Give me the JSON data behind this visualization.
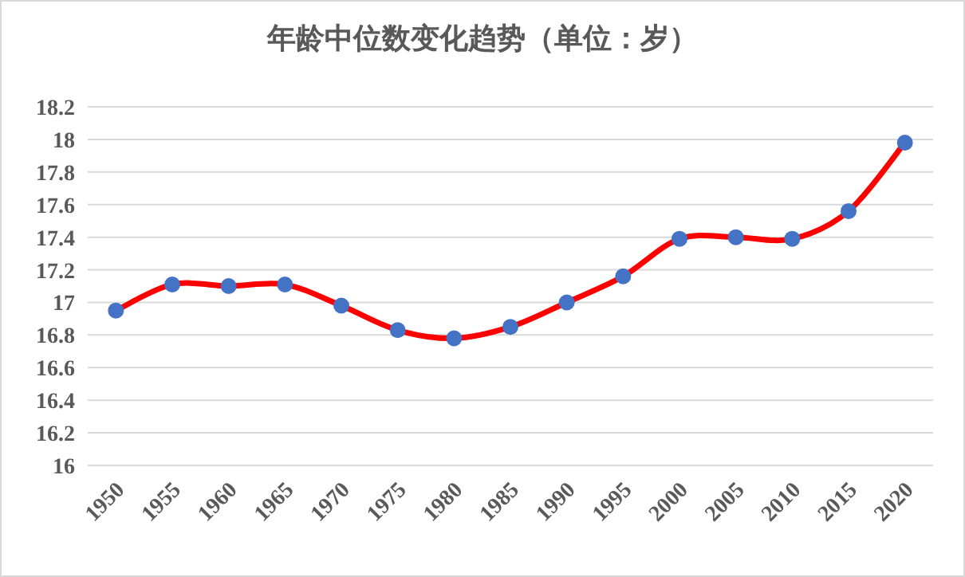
{
  "chart_data": {
    "type": "line",
    "title": "年龄中位数变化趋势（单位：岁）",
    "categories": [
      "1950",
      "1955",
      "1960",
      "1965",
      "1970",
      "1975",
      "1980",
      "1985",
      "1990",
      "1995",
      "2000",
      "2005",
      "2010",
      "2015",
      "2020"
    ],
    "series": [
      {
        "type": "line",
        "marker": "none",
        "color": "#ff0000",
        "values": [
          16.95,
          17.11,
          17.1,
          17.11,
          16.98,
          16.83,
          16.78,
          16.85,
          17.0,
          17.16,
          17.39,
          17.4,
          17.39,
          17.56,
          17.98
        ]
      },
      {
        "type": "scatter",
        "color": "#4472c4",
        "values": [
          16.95,
          17.11,
          17.1,
          17.11,
          16.98,
          16.83,
          16.78,
          16.85,
          17.0,
          17.16,
          17.39,
          17.4,
          17.39,
          17.56,
          17.98
        ]
      }
    ],
    "marker": "circle",
    "line_style": "solid",
    "ylim": [
      16,
      18.2
    ],
    "yticks": [
      16,
      16.2,
      16.4,
      16.6,
      16.8,
      17,
      17.2,
      17.4,
      17.6,
      17.8,
      18,
      18.2
    ],
    "grid": "y"
  }
}
